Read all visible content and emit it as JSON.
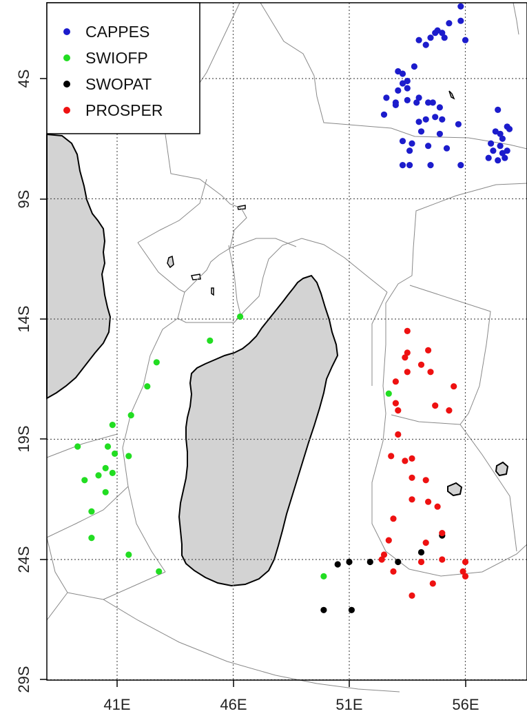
{
  "map": {
    "type": "scatter",
    "xlim": [
      38,
      58.5
    ],
    "ylim": [
      -29,
      2.5
    ],
    "x_ticks": [
      41,
      46,
      51,
      56
    ],
    "x_tick_labels": [
      "41E",
      "46E",
      "51E",
      "56E"
    ],
    "y_ticks": [
      -4,
      -9,
      -14,
      -19,
      -24,
      -29
    ],
    "y_tick_labels": [
      "4S",
      "9S",
      "14S",
      "19S",
      "24S",
      "29S"
    ],
    "grid": true,
    "legend_position": "top-left",
    "colors": {
      "land": "#d3d3d3",
      "boundary": "#888888",
      "grid": "#555555"
    }
  },
  "legend": {
    "items": [
      {
        "label": "CAPPES",
        "color": "#1c1ccc"
      },
      {
        "label": "SWIOFP",
        "color": "#22dd22"
      },
      {
        "label": "SWOPAT",
        "color": "#000000"
      },
      {
        "label": "PROSPER",
        "color": "#ee1111"
      }
    ]
  },
  "chart_data": {
    "type": "scatter",
    "xlim": [
      38,
      58.5
    ],
    "ylim": [
      -29,
      2.5
    ],
    "series": [
      {
        "name": "CAPPES",
        "color": "#1c1ccc",
        "points": [
          [
            55.8,
            -1.0
          ],
          [
            55.8,
            -1.6
          ],
          [
            55.3,
            -1.7
          ],
          [
            54.8,
            -2.0
          ],
          [
            56.0,
            -2.4
          ],
          [
            54.3,
            -2.6
          ],
          [
            54.5,
            -2.3
          ],
          [
            54.7,
            -2.1
          ],
          [
            55.0,
            -2.1
          ],
          [
            55.1,
            -2.3
          ],
          [
            54.0,
            -2.4
          ],
          [
            53.8,
            -3.5
          ],
          [
            53.1,
            -3.7
          ],
          [
            53.3,
            -3.8
          ],
          [
            53.3,
            -4.2
          ],
          [
            53.5,
            -4.4
          ],
          [
            53.1,
            -4.5
          ],
          [
            53.5,
            -4.9
          ],
          [
            52.6,
            -4.8
          ],
          [
            53.0,
            -5.0
          ],
          [
            53.9,
            -5.0
          ],
          [
            54.4,
            -5.0
          ],
          [
            54.6,
            -5.0
          ],
          [
            54.9,
            -5.2
          ],
          [
            54.7,
            -5.6
          ],
          [
            54.3,
            -5.7
          ],
          [
            54.0,
            -5.8
          ],
          [
            54.1,
            -6.2
          ],
          [
            52.5,
            -5.5
          ],
          [
            53.0,
            -5.1
          ],
          [
            53.5,
            -4.1
          ],
          [
            54.0,
            -4.8
          ],
          [
            55.0,
            -5.7
          ],
          [
            55.7,
            -5.9
          ],
          [
            54.9,
            -6.3
          ],
          [
            53.7,
            -6.7
          ],
          [
            53.3,
            -6.6
          ],
          [
            53.6,
            -7.0
          ],
          [
            54.4,
            -6.8
          ],
          [
            55.2,
            -6.9
          ],
          [
            57.4,
            -5.3
          ],
          [
            57.3,
            -6.2
          ],
          [
            57.5,
            -6.3
          ],
          [
            57.8,
            -6.0
          ],
          [
            57.9,
            -6.1
          ],
          [
            57.6,
            -6.5
          ],
          [
            57.1,
            -6.7
          ],
          [
            57.2,
            -7.0
          ],
          [
            57.5,
            -6.8
          ],
          [
            57.6,
            -7.1
          ],
          [
            57.8,
            -7.0
          ],
          [
            57.0,
            -7.3
          ],
          [
            57.4,
            -7.4
          ],
          [
            57.7,
            -7.3
          ],
          [
            53.3,
            -7.6
          ],
          [
            53.6,
            -7.6
          ],
          [
            54.5,
            -7.6
          ],
          [
            55.8,
            -7.6
          ]
        ]
      },
      {
        "name": "SWIOFP",
        "color": "#22dd22",
        "points": [
          [
            46.3,
            -13.9
          ],
          [
            45.0,
            -14.9
          ],
          [
            42.7,
            -15.8
          ],
          [
            42.3,
            -16.8
          ],
          [
            52.7,
            -17.1
          ],
          [
            41.6,
            -18.0
          ],
          [
            40.8,
            -18.4
          ],
          [
            40.6,
            -19.3
          ],
          [
            40.9,
            -19.6
          ],
          [
            41.5,
            -19.7
          ],
          [
            39.3,
            -19.3
          ],
          [
            40.5,
            -20.2
          ],
          [
            40.8,
            -20.4
          ],
          [
            40.2,
            -20.5
          ],
          [
            39.6,
            -20.7
          ],
          [
            40.5,
            -21.2
          ],
          [
            39.9,
            -22.0
          ],
          [
            39.9,
            -23.1
          ],
          [
            41.5,
            -23.8
          ],
          [
            42.8,
            -24.5
          ],
          [
            49.9,
            -24.7
          ]
        ]
      },
      {
        "name": "SWOPAT",
        "color": "#000000",
        "points": [
          [
            50.5,
            -24.2
          ],
          [
            51.0,
            -24.1
          ],
          [
            51.9,
            -24.1
          ],
          [
            53.1,
            -24.1
          ],
          [
            54.1,
            -23.7
          ],
          [
            55.0,
            -23.0
          ],
          [
            49.9,
            -26.1
          ],
          [
            51.1,
            -26.1
          ]
        ]
      },
      {
        "name": "PROSPER",
        "color": "#ee1111",
        "points": [
          [
            53.5,
            -14.5
          ],
          [
            54.4,
            -15.3
          ],
          [
            53.5,
            -15.4
          ],
          [
            53.4,
            -15.6
          ],
          [
            54.1,
            -15.9
          ],
          [
            53.5,
            -16.2
          ],
          [
            54.5,
            -16.2
          ],
          [
            53.0,
            -16.6
          ],
          [
            55.5,
            -16.8
          ],
          [
            53.0,
            -17.5
          ],
          [
            54.7,
            -17.6
          ],
          [
            53.1,
            -17.8
          ],
          [
            55.3,
            -17.8
          ],
          [
            53.1,
            -18.8
          ],
          [
            52.8,
            -19.7
          ],
          [
            53.4,
            -19.9
          ],
          [
            53.7,
            -19.8
          ],
          [
            53.7,
            -20.6
          ],
          [
            54.3,
            -20.7
          ],
          [
            53.7,
            -21.5
          ],
          [
            54.4,
            -21.6
          ],
          [
            54.8,
            -21.8
          ],
          [
            52.9,
            -22.3
          ],
          [
            52.7,
            -23.2
          ],
          [
            54.3,
            -23.3
          ],
          [
            55.0,
            -22.9
          ],
          [
            52.5,
            -23.8
          ],
          [
            52.4,
            -24.0
          ],
          [
            52.9,
            -24.5
          ],
          [
            54.1,
            -24.1
          ],
          [
            55.0,
            -24.0
          ],
          [
            56.0,
            -24.1
          ],
          [
            55.9,
            -24.5
          ],
          [
            56.0,
            -24.7
          ],
          [
            54.6,
            -25.0
          ],
          [
            53.7,
            -25.5
          ]
        ]
      }
    ]
  }
}
